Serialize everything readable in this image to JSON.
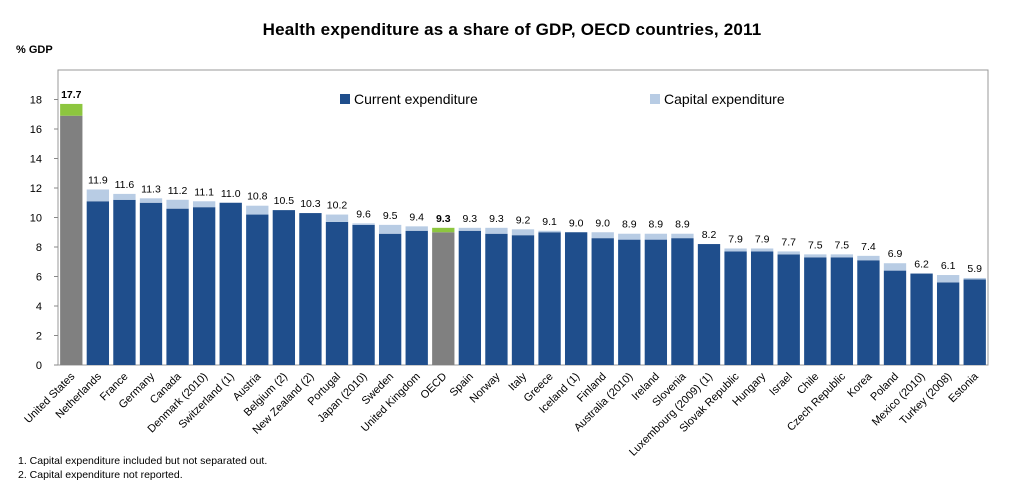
{
  "chart_data": {
    "type": "bar",
    "title": "Health expenditure as a share of GDP, OECD countries, 2011",
    "ylabel": "% GDP",
    "ylim": [
      0,
      20
    ],
    "yticks": [
      0,
      2,
      4,
      6,
      8,
      10,
      12,
      14,
      16,
      18
    ],
    "grid": false,
    "legend_position": "top",
    "categories": [
      "United States",
      "Netherlands",
      "France",
      "Germany",
      "Canada",
      "Denmark (2010)",
      "Switzerland (1)",
      "Austria",
      "Belgium (2)",
      "New Zealand (2)",
      "Portugal",
      "Japan (2010)",
      "Sweden",
      "United Kingdom",
      "OECD",
      "Spain",
      "Norway",
      "Italy",
      "Greece",
      "Iceland (1)",
      "Finland",
      "Australia (2010)",
      "Ireland",
      "Slovenia",
      "Luxembourg (2009) (1)",
      "Slovak Republic",
      "Hungary",
      "Israel",
      "Chile",
      "Czech Republic",
      "Korea",
      "Poland",
      "Mexico (2010)",
      "Turkey (2008)",
      "Estonia"
    ],
    "series": [
      {
        "name": "Current expenditure",
        "color": "#1F4E8C",
        "values": [
          16.9,
          11.1,
          11.2,
          11.0,
          10.6,
          10.7,
          11.0,
          10.2,
          10.5,
          10.3,
          9.7,
          9.5,
          8.9,
          9.1,
          9.0,
          9.1,
          8.9,
          8.8,
          9.0,
          9.0,
          8.6,
          8.5,
          8.5,
          8.6,
          8.2,
          7.7,
          7.7,
          7.5,
          7.3,
          7.3,
          7.1,
          6.4,
          6.2,
          5.6,
          5.8
        ]
      },
      {
        "name": "Capital expenditure",
        "color": "#B8CCE4",
        "values": [
          0.8,
          0.8,
          0.4,
          0.3,
          0.6,
          0.4,
          0.0,
          0.6,
          0.0,
          0.0,
          0.5,
          0.1,
          0.6,
          0.3,
          0.3,
          0.2,
          0.4,
          0.4,
          0.1,
          0.0,
          0.4,
          0.4,
          0.4,
          0.3,
          0.0,
          0.2,
          0.2,
          0.2,
          0.2,
          0.2,
          0.3,
          0.5,
          0.0,
          0.5,
          0.1
        ]
      }
    ],
    "totals": [
      "17.7",
      "11.9",
      "11.6",
      "11.3",
      "11.2",
      "11.1",
      "11.0",
      "10.8",
      "10.5",
      "10.3",
      "10.2",
      "9.6",
      "9.5",
      "9.4",
      "9.3",
      "9.3",
      "9.3",
      "9.2",
      "9.1",
      "9.0",
      "9.0",
      "8.9",
      "8.9",
      "8.9",
      "8.2",
      "7.9",
      "7.9",
      "7.7",
      "7.5",
      "7.5",
      "7.4",
      "6.9",
      "6.2",
      "6.1",
      "5.9"
    ],
    "highlighted": {
      "categories": [
        "United States",
        "OECD"
      ],
      "current_color": "#808080",
      "capital_color": "#8DC63F"
    }
  },
  "notes": [
    "1. Capital expenditure included but not separated out.",
    "2. Capital expenditure not reported."
  ]
}
